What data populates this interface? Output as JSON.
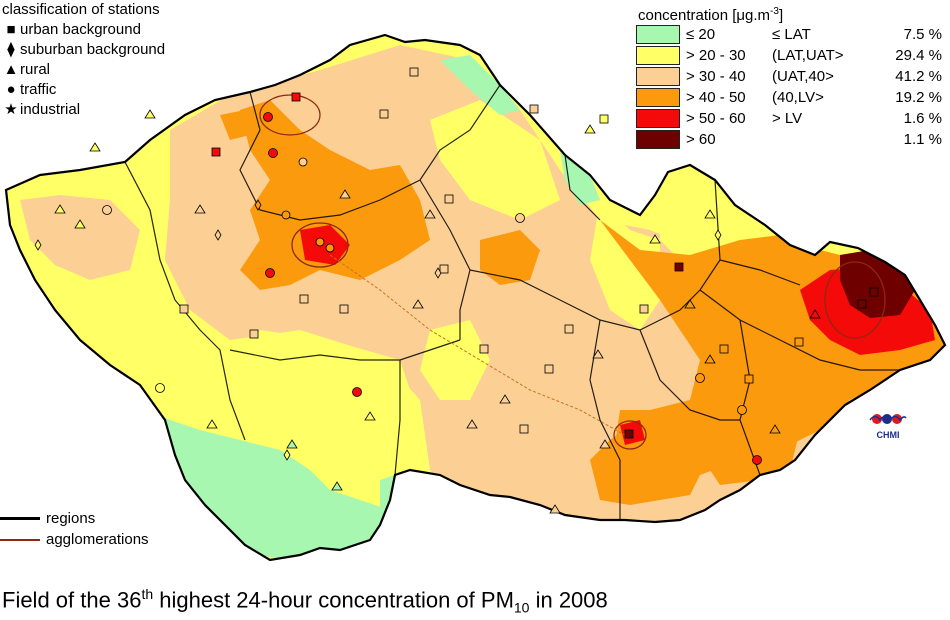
{
  "stations_legend": {
    "title": "classification of stations",
    "items": [
      {
        "label": "urban background",
        "symbol": "square"
      },
      {
        "label": "suburban background",
        "symbol": "diamond"
      },
      {
        "label": "rural",
        "symbol": "triangle"
      },
      {
        "label": "traffic",
        "symbol": "circle"
      },
      {
        "label": "industrial",
        "symbol": "star"
      }
    ]
  },
  "concentration_legend": {
    "title": "concentration [μg.m",
    "title_exp": "-3",
    "title_end": "]",
    "rows": [
      {
        "range": "≤ 20",
        "class": "≤ LAT",
        "percent": "7.5 %",
        "color": "#a7f7b1"
      },
      {
        "range": "> 20 - 30",
        "class": "(LAT,UAT>",
        "percent": "29.4 %",
        "color": "#ffff66"
      },
      {
        "range": "> 30 - 40",
        "class": "(UAT,40>",
        "percent": "41.2 %",
        "color": "#fccf95"
      },
      {
        "range": "> 40 - 50",
        "class": "(40,LV>",
        "percent": "19.2 %",
        "color": "#fb9a0c"
      },
      {
        "range": "> 50 - 60",
        "class": "> LV",
        "percent": "1.6 %",
        "color": "#f50a0a"
      },
      {
        "range": "> 60",
        "class": "",
        "percent": "1.1 %",
        "color": "#6e0000"
      }
    ]
  },
  "line_legend": {
    "items": [
      {
        "label": "regions",
        "color": "#000000"
      },
      {
        "label": "agglomerations",
        "color": "#8b2a10"
      }
    ]
  },
  "logo": {
    "text": "CHMI"
  },
  "caption": {
    "part1": "Field of the 36",
    "sup": "th",
    "part2": " highest 24-hour concentration of PM",
    "sub": "10",
    "part3": " in 2008"
  }
}
